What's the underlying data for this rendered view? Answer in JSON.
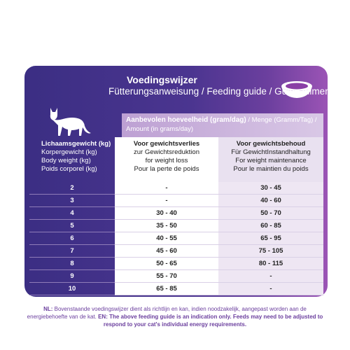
{
  "header": {
    "title": "Voedingswijzer",
    "subtitle": "Fütterungsanweisung / Feeding guide / Guide alimentaire"
  },
  "amount": {
    "bold": "Aanbevolen hoeveelheid (gram/dag)",
    "rest": " / Menge (Gramm/Tag) / Amount (in grams/day)"
  },
  "columns": {
    "body_weight": {
      "nl": "Lichaamsgewicht (kg)",
      "de": "Korpergewicht (kg)",
      "en": "Body weight (kg)",
      "fr": "Poids corporel (kg)"
    },
    "weight_loss": {
      "nl": "Voor gewichtsverlies",
      "de": "zur Gewichtsreduktion",
      "en": "for weight loss",
      "fr": "Pour la perte de poids"
    },
    "maintenance": {
      "nl": "Voor gewichtsbehoud",
      "de": "Für GewichtInstandhaltung",
      "en": "For weight maintenance",
      "fr": "Pour le maintien du poids"
    }
  },
  "rows": [
    {
      "weight": "2",
      "loss": "-",
      "maintain": "30 - 45"
    },
    {
      "weight": "3",
      "loss": "-",
      "maintain": "40 - 60"
    },
    {
      "weight": "4",
      "loss": "30 - 40",
      "maintain": "50 - 70"
    },
    {
      "weight": "5",
      "loss": "35 - 50",
      "maintain": "60 - 85"
    },
    {
      "weight": "6",
      "loss": "40 - 55",
      "maintain": "65 - 95"
    },
    {
      "weight": "7",
      "loss": "45 - 60",
      "maintain": "75 - 105"
    },
    {
      "weight": "8",
      "loss": "50 - 65",
      "maintain": "80 - 115"
    },
    {
      "weight": "9",
      "loss": "55 - 70",
      "maintain": "-"
    },
    {
      "weight": "10",
      "loss": "65 - 85",
      "maintain": "-"
    }
  ],
  "footnote": {
    "nl_tag": "NL:",
    "nl": " Bovenstaande voedingswijzer dient als richtlijn en kan, indien noodzakelijk, aangepast worden aan de energiebehoefte van de kat.",
    "en_tag": " EN:",
    "en": " The above feeding guide is an indication only. Feeds may need to be adjusted to respond to your cat's individual energy requirements."
  },
  "icons": {
    "cat": "cat-silhouette-icon",
    "bowl": "food-bowl-icon"
  },
  "colors": {
    "panel": "#3b2e83",
    "accent": "#9b54b5",
    "footnote": "#6b3f9e"
  }
}
